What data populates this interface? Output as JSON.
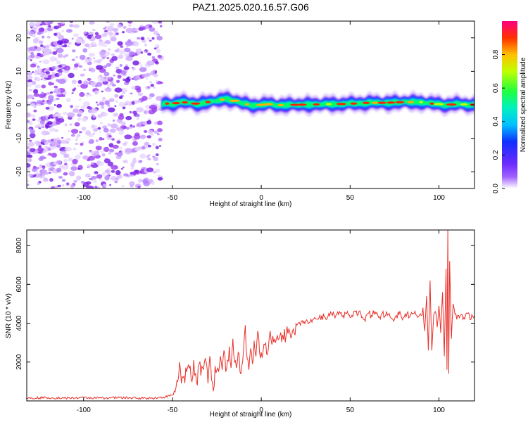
{
  "title": "PAZ1.2025.020.16.57.G06",
  "colors": {
    "snr_line": "#e8302a",
    "frame": "#000000",
    "scatter": "#9b3cf0",
    "band_core": "#ff0000",
    "band_mid": "#00ff60",
    "band_outer": "#2040ff"
  },
  "chart_data": [
    {
      "type": "heatmap",
      "title": "PAZ1.2025.020.16.57.G06",
      "xlabel": "Height of straight line (km)",
      "ylabel": "Frequency (Hz)",
      "xlim": [
        -132,
        120
      ],
      "ylim": [
        -25,
        25
      ],
      "x_ticks": [
        -100,
        -50,
        0,
        50,
        100
      ],
      "x_tick_labels": [
        "-100",
        "-50",
        "0",
        "50",
        "100"
      ],
      "y_ticks": [
        -20,
        -10,
        0,
        10,
        20
      ],
      "y_tick_labels": [
        "-20",
        "-10",
        "0",
        "10",
        "20"
      ],
      "noise_region_x": [
        -132,
        -56
      ],
      "band_region_x": [
        -56,
        120
      ],
      "band_center_hz": [
        [
          -55,
          0.4
        ],
        [
          -50,
          0.3
        ],
        [
          -45,
          0.8
        ],
        [
          -40,
          0.6
        ],
        [
          -35,
          0.2
        ],
        [
          -30,
          0.8
        ],
        [
          -25,
          1.2
        ],
        [
          -20,
          1.8
        ],
        [
          -15,
          1.2
        ],
        [
          -10,
          0.3
        ],
        [
          -5,
          -0.1
        ],
        [
          0,
          0.0
        ],
        [
          5,
          0.2
        ],
        [
          10,
          -0.1
        ],
        [
          20,
          0.0
        ],
        [
          30,
          0.1
        ],
        [
          40,
          0.2
        ],
        [
          50,
          0.3
        ],
        [
          60,
          0.6
        ],
        [
          70,
          0.6
        ],
        [
          80,
          0.8
        ],
        [
          90,
          0.8
        ],
        [
          95,
          0.4
        ],
        [
          100,
          0.2
        ],
        [
          105,
          0.0
        ],
        [
          110,
          0.2
        ],
        [
          115,
          0.1
        ],
        [
          120,
          0.0
        ]
      ],
      "colorbar": {
        "label": "Normalized spectral amplitude",
        "range": [
          0,
          1
        ],
        "ticks": [
          0.0,
          0.2,
          0.4,
          0.6,
          0.8
        ],
        "tick_labels": [
          "0.0",
          "0.2",
          "0.4",
          "0.6",
          "0.8"
        ]
      },
      "grid": false
    },
    {
      "type": "line",
      "xlabel": "Height of straight line (km)",
      "ylabel": "SNR (10 * v/v)",
      "xlim": [
        -132,
        120
      ],
      "ylim": [
        0,
        8800
      ],
      "x_ticks": [
        -100,
        -50,
        0,
        50,
        100
      ],
      "x_tick_labels": [
        "-100",
        "-50",
        "0",
        "50",
        "100"
      ],
      "y_ticks": [
        2000,
        4000,
        6000,
        8000
      ],
      "y_tick_labels": [
        "2000",
        "4000",
        "6000",
        "8000"
      ],
      "grid": false,
      "series": [
        {
          "points": [
            [
              -132,
              150
            ],
            [
              -120,
              170
            ],
            [
              -110,
              140
            ],
            [
              -100,
              160
            ],
            [
              -90,
              150
            ],
            [
              -80,
              170
            ],
            [
              -70,
              140
            ],
            [
              -60,
              150
            ],
            [
              -54,
              200
            ],
            [
              -50,
              300
            ],
            [
              -48,
              700
            ],
            [
              -47,
              1000
            ],
            [
              -46,
              2000
            ],
            [
              -45,
              900
            ],
            [
              -44,
              1200
            ],
            [
              -42,
              1500
            ],
            [
              -40,
              1800
            ],
            [
              -39,
              1000
            ],
            [
              -38,
              2100
            ],
            [
              -37,
              1400
            ],
            [
              -36,
              800
            ],
            [
              -35,
              1900
            ],
            [
              -34,
              1300
            ],
            [
              -33,
              1700
            ],
            [
              -31,
              2000
            ],
            [
              -30,
              900
            ],
            [
              -29,
              2300
            ],
            [
              -28,
              1100
            ],
            [
              -27,
              500
            ],
            [
              -26,
              1800
            ],
            [
              -24,
              1500
            ],
            [
              -23,
              2300
            ],
            [
              -22,
              1600
            ],
            [
              -21,
              2600
            ],
            [
              -20,
              1500
            ],
            [
              -18,
              2800
            ],
            [
              -17,
              1700
            ],
            [
              -16,
              3200
            ],
            [
              -15,
              2000
            ],
            [
              -14,
              1700
            ],
            [
              -13,
              2500
            ],
            [
              -12,
              1500
            ],
            [
              -11,
              1800
            ],
            [
              -10,
              2600
            ],
            [
              -9,
              3900
            ],
            [
              -8,
              2200
            ],
            [
              -7,
              1600
            ],
            [
              -6,
              2700
            ],
            [
              -5,
              1900
            ],
            [
              -4,
              3100
            ],
            [
              -3,
              2300
            ],
            [
              -2,
              3600
            ],
            [
              -1,
              2500
            ],
            [
              0,
              2500
            ],
            [
              2,
              2900
            ],
            [
              4,
              2700
            ],
            [
              5,
              3600
            ],
            [
              6,
              2900
            ],
            [
              8,
              3000
            ],
            [
              10,
              3200
            ],
            [
              12,
              3400
            ],
            [
              14,
              3400
            ],
            [
              16,
              3600
            ],
            [
              18,
              3700
            ],
            [
              20,
              3900
            ],
            [
              22,
              3900
            ],
            [
              24,
              4100
            ],
            [
              26,
              4100
            ],
            [
              28,
              4200
            ],
            [
              30,
              4300
            ],
            [
              32,
              4200
            ],
            [
              34,
              4400
            ],
            [
              36,
              4300
            ],
            [
              38,
              4500
            ],
            [
              40,
              4400
            ],
            [
              42,
              4400
            ],
            [
              44,
              4600
            ],
            [
              46,
              4400
            ],
            [
              48,
              4500
            ],
            [
              50,
              4300
            ],
            [
              52,
              4600
            ],
            [
              54,
              4400
            ],
            [
              56,
              4500
            ],
            [
              58,
              4200
            ],
            [
              60,
              4500
            ],
            [
              62,
              4400
            ],
            [
              64,
              4600
            ],
            [
              66,
              4300
            ],
            [
              68,
              4500
            ],
            [
              70,
              4400
            ],
            [
              72,
              4500
            ],
            [
              74,
              4200
            ],
            [
              76,
              4400
            ],
            [
              78,
              4600
            ],
            [
              80,
              4300
            ],
            [
              82,
              4500
            ],
            [
              84,
              4400
            ],
            [
              86,
              4500
            ],
            [
              88,
              4300
            ],
            [
              90,
              4400
            ],
            [
              91,
              4800
            ],
            [
              92,
              3600
            ],
            [
              93,
              5400
            ],
            [
              94,
              2600
            ],
            [
              95,
              6200
            ],
            [
              96,
              2600
            ],
            [
              97,
              4400
            ],
            [
              98,
              4600
            ],
            [
              99,
              3800
            ],
            [
              100,
              4900
            ],
            [
              101,
              3500
            ],
            [
              102,
              5600
            ],
            [
              103,
              2300
            ],
            [
              104,
              6800
            ],
            [
              104.5,
              1600
            ],
            [
              105,
              8800
            ],
            [
              105.5,
              1400
            ],
            [
              106,
              7200
            ],
            [
              107,
              3200
            ],
            [
              108,
              5000
            ],
            [
              110,
              4200
            ],
            [
              112,
              4400
            ],
            [
              114,
              4300
            ],
            [
              116,
              4500
            ],
            [
              118,
              4200
            ],
            [
              120,
              4400
            ]
          ]
        }
      ]
    }
  ]
}
